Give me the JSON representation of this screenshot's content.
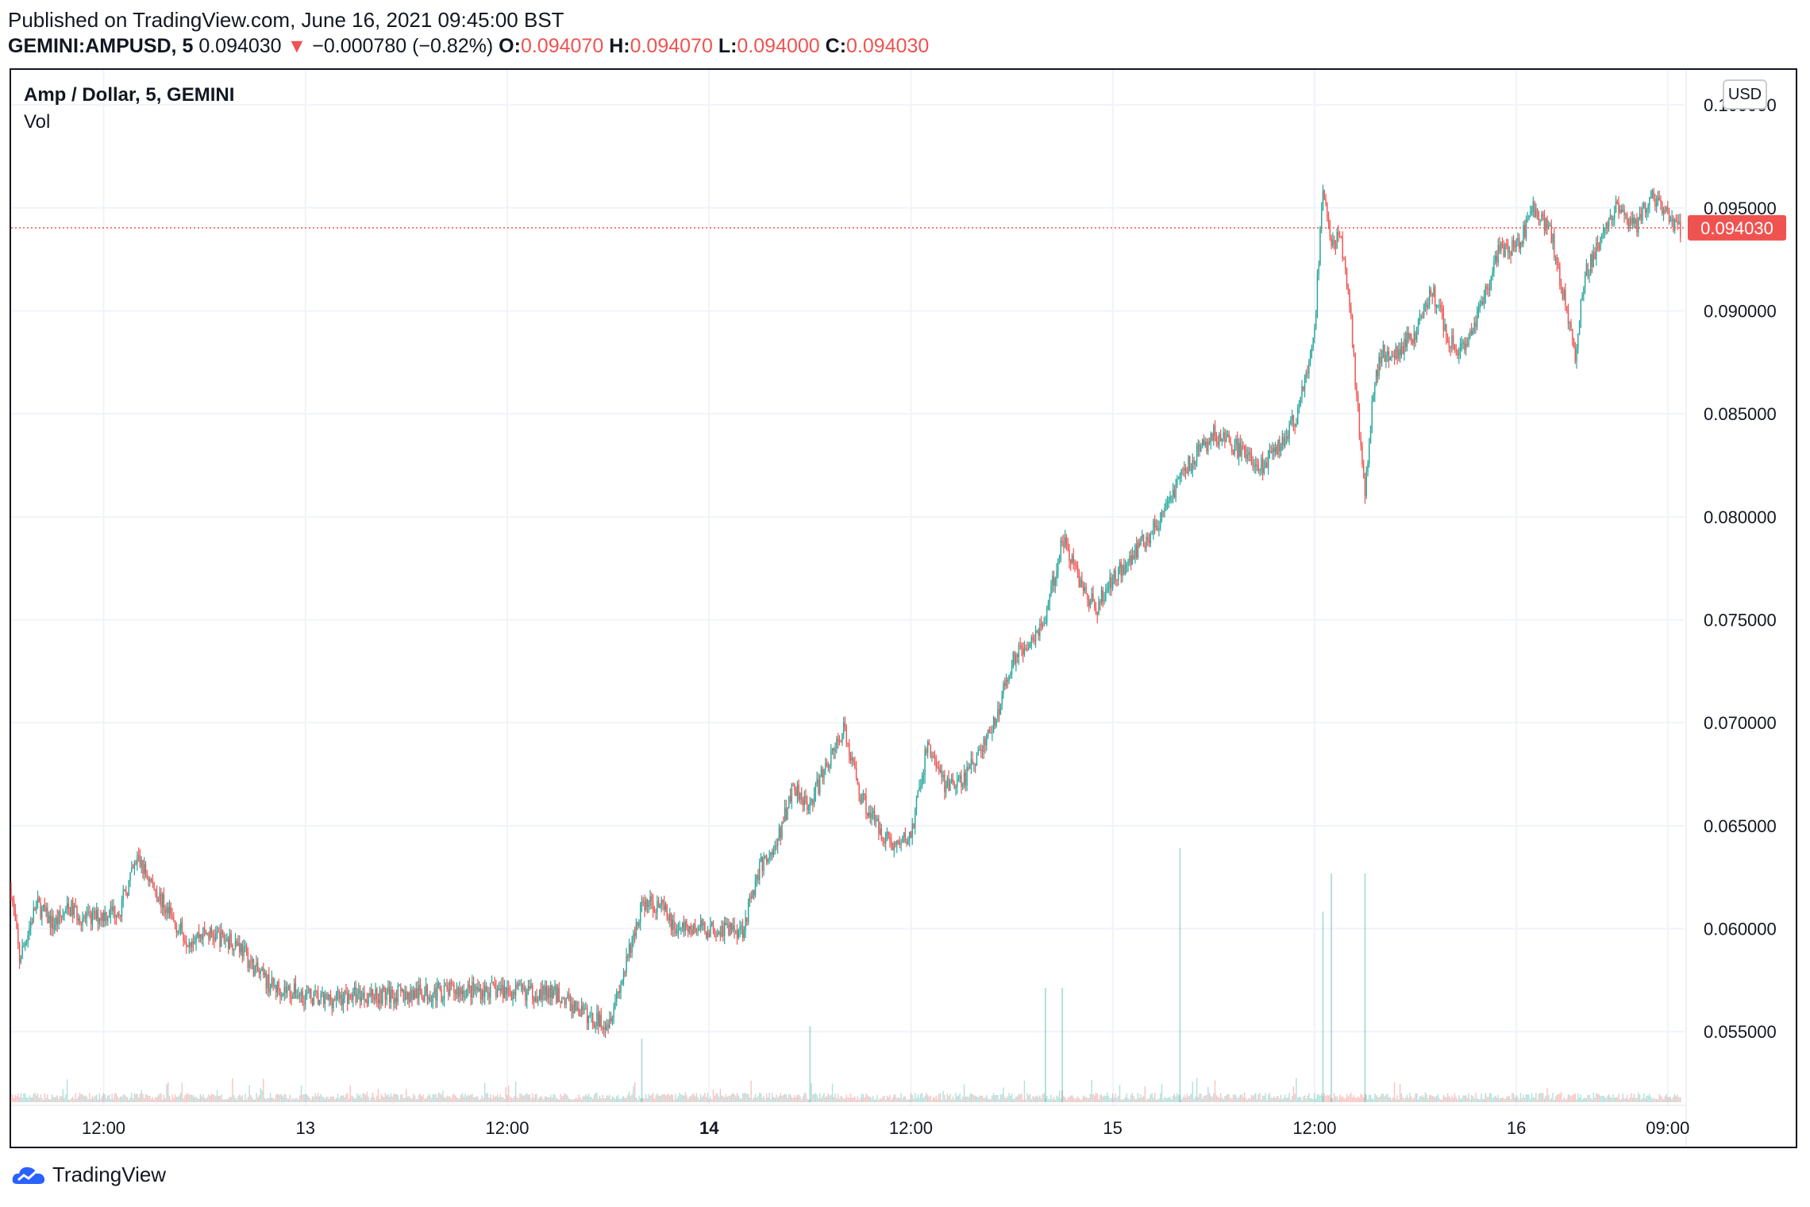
{
  "header": {
    "published": "Published on TradingView.com, June 16, 2021 09:45:00 BST",
    "symbol": "GEMINI:AMPUSD, 5",
    "last": "0.094030",
    "change_arrow": "▼",
    "change": "−0.000780 (−0.82%)",
    "o_label": "O:",
    "o_value": "0.094070",
    "h_label": "H:",
    "h_value": "0.094070",
    "l_label": "L:",
    "l_value": "0.094000",
    "c_label": "C:",
    "c_value": "0.094030"
  },
  "legend": {
    "title": "Amp / Dollar, 5, GEMINI",
    "volume": "Vol"
  },
  "currency_button": "USD",
  "brand": "TradingView",
  "colors": {
    "up": "#26a69a",
    "down": "#ef5350",
    "grid": "#f0f3fa",
    "price_line": "#ef5350"
  },
  "chart_data": {
    "type": "candlestick",
    "timeframe": "5",
    "x_ticks": [
      "12:00",
      "13",
      "12:00",
      "14",
      "12:00",
      "15",
      "12:00",
      "16",
      "09:00"
    ],
    "x_tick_times": [
      "2021-06-12T12:00",
      "2021-06-13T00:00",
      "2021-06-13T12:00",
      "2021-06-14T00:00",
      "2021-06-14T12:00",
      "2021-06-15T00:00",
      "2021-06-15T12:00",
      "2021-06-16T00:00",
      "2021-06-16T09:00"
    ],
    "bold_ticks": [
      "14"
    ],
    "y_ticks": [
      "0.100000",
      "0.095000",
      "0.090000",
      "0.085000",
      "0.080000",
      "0.075000",
      "0.070000",
      "0.065000",
      "0.060000",
      "0.055000"
    ],
    "y_range": [
      0.0515,
      0.1017
    ],
    "x_range": [
      "2021-06-12T06:30",
      "2021-06-16T10:00"
    ],
    "last_price": 0.09403,
    "last_price_label": "0.094030",
    "price_path": [
      [
        "2021-06-12T06:30",
        0.0619
      ],
      [
        "2021-06-12T07:00",
        0.0585
      ],
      [
        "2021-06-12T08:00",
        0.0612
      ],
      [
        "2021-06-12T09:00",
        0.0602
      ],
      [
        "2021-06-12T10:00",
        0.061
      ],
      [
        "2021-06-12T11:00",
        0.0604
      ],
      [
        "2021-06-12T12:00",
        0.0607
      ],
      [
        "2021-06-12T13:00",
        0.061
      ],
      [
        "2021-06-12T14:00",
        0.0634
      ],
      [
        "2021-06-12T15:00",
        0.062
      ],
      [
        "2021-06-12T16:00",
        0.0605
      ],
      [
        "2021-06-12T17:00",
        0.0595
      ],
      [
        "2021-06-12T18:00",
        0.0598
      ],
      [
        "2021-06-12T20:00",
        0.0593
      ],
      [
        "2021-06-12T21:00",
        0.058
      ],
      [
        "2021-06-12T22:00",
        0.0572
      ],
      [
        "2021-06-12T23:00",
        0.057
      ],
      [
        "2021-06-13T01:00",
        0.0565
      ],
      [
        "2021-06-13T03:00",
        0.0568
      ],
      [
        "2021-06-13T06:00",
        0.0568
      ],
      [
        "2021-06-13T09:00",
        0.057
      ],
      [
        "2021-06-13T12:00",
        0.057
      ],
      [
        "2021-06-13T15:00",
        0.0568
      ],
      [
        "2021-06-13T17:00",
        0.0556
      ],
      [
        "2021-06-13T18:00",
        0.0555
      ],
      [
        "2021-06-13T19:00",
        0.058
      ],
      [
        "2021-06-13T20:00",
        0.0612
      ],
      [
        "2021-06-13T21:00",
        0.0612
      ],
      [
        "2021-06-13T22:00",
        0.06
      ],
      [
        "2021-06-14T00:00",
        0.06
      ],
      [
        "2021-06-14T02:00",
        0.06
      ],
      [
        "2021-06-14T03:00",
        0.063
      ],
      [
        "2021-06-14T04:00",
        0.064
      ],
      [
        "2021-06-14T05:00",
        0.067
      ],
      [
        "2021-06-14T06:00",
        0.066
      ],
      [
        "2021-06-14T07:00",
        0.068
      ],
      [
        "2021-06-14T08:00",
        0.0697
      ],
      [
        "2021-06-14T09:00",
        0.0665
      ],
      [
        "2021-06-14T10:00",
        0.065
      ],
      [
        "2021-06-14T11:00",
        0.064
      ],
      [
        "2021-06-14T12:00",
        0.0645
      ],
      [
        "2021-06-14T13:00",
        0.069
      ],
      [
        "2021-06-14T14:00",
        0.067
      ],
      [
        "2021-06-14T15:00",
        0.067
      ],
      [
        "2021-06-14T16:00",
        0.0685
      ],
      [
        "2021-06-14T17:00",
        0.07
      ],
      [
        "2021-06-14T18:00",
        0.073
      ],
      [
        "2021-06-14T19:00",
        0.074
      ],
      [
        "2021-06-14T20:00",
        0.075
      ],
      [
        "2021-06-14T21:00",
        0.079
      ],
      [
        "2021-06-14T22:00",
        0.077
      ],
      [
        "2021-06-14T23:00",
        0.0755
      ],
      [
        "2021-06-15T00:00",
        0.077
      ],
      [
        "2021-06-15T01:00",
        0.078
      ],
      [
        "2021-06-15T02:00",
        0.079
      ],
      [
        "2021-06-15T03:00",
        0.08
      ],
      [
        "2021-06-15T04:00",
        0.082
      ],
      [
        "2021-06-15T05:00",
        0.083
      ],
      [
        "2021-06-15T06:00",
        0.084
      ],
      [
        "2021-06-15T07:00",
        0.0835
      ],
      [
        "2021-06-15T08:00",
        0.083
      ],
      [
        "2021-06-15T09:00",
        0.0825
      ],
      [
        "2021-06-15T10:00",
        0.0835
      ],
      [
        "2021-06-15T11:00",
        0.085
      ],
      [
        "2021-06-15T12:00",
        0.089
      ],
      [
        "2021-06-15T12:30",
        0.096
      ],
      [
        "2021-06-15T13:00",
        0.093
      ],
      [
        "2021-06-15T13:30",
        0.094
      ],
      [
        "2021-06-15T14:00",
        0.091
      ],
      [
        "2021-06-15T14:30",
        0.086
      ],
      [
        "2021-06-15T15:00",
        0.081
      ],
      [
        "2021-06-15T15:30",
        0.086
      ],
      [
        "2021-06-15T16:00",
        0.088
      ],
      [
        "2021-06-15T17:00",
        0.088
      ],
      [
        "2021-06-15T18:00",
        0.089
      ],
      [
        "2021-06-15T19:00",
        0.091
      ],
      [
        "2021-06-15T20:00",
        0.0885
      ],
      [
        "2021-06-15T21:00",
        0.088
      ],
      [
        "2021-06-15T22:00",
        0.0905
      ],
      [
        "2021-06-15T23:00",
        0.093
      ],
      [
        "2021-06-16T00:00",
        0.093
      ],
      [
        "2021-06-16T01:00",
        0.095
      ],
      [
        "2021-06-16T02:00",
        0.094
      ],
      [
        "2021-06-16T03:00",
        0.09
      ],
      [
        "2021-06-16T03:30",
        0.0875
      ],
      [
        "2021-06-16T04:00",
        0.0915
      ],
      [
        "2021-06-16T05:00",
        0.0935
      ],
      [
        "2021-06-16T06:00",
        0.095
      ],
      [
        "2021-06-16T07:00",
        0.094
      ],
      [
        "2021-06-16T08:00",
        0.0955
      ],
      [
        "2021-06-16T09:00",
        0.0945
      ],
      [
        "2021-06-16T09:45",
        0.094
      ]
    ],
    "volume_spikes": [
      [
        "2021-06-15T04:00",
        1.0
      ],
      [
        "2021-06-15T13:00",
        0.9
      ],
      [
        "2021-06-15T15:00",
        0.9
      ],
      [
        "2021-06-15T12:30",
        0.75
      ],
      [
        "2021-06-14T20:00",
        0.45
      ],
      [
        "2021-06-14T21:00",
        0.45
      ],
      [
        "2021-06-14T06:00",
        0.3
      ],
      [
        "2021-06-13T20:00",
        0.25
      ]
    ]
  }
}
